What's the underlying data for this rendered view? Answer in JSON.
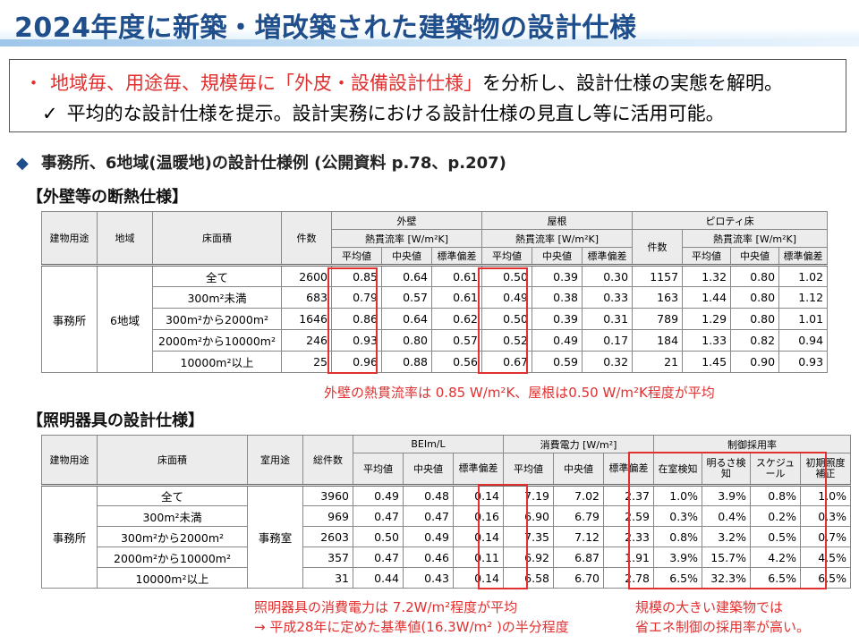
{
  "title": "2024年度に新築・増改築された建築物の設計仕様",
  "summary": {
    "bullet": "・",
    "line1_red": "地域毎、用途毎、規模毎に「外皮・設備設計仕様」",
    "line1_rest": "を分析し、設計仕様の実態を解明。",
    "check": "✓",
    "line2": "平均的な設計仕様を提示。設計実務における設計仕様の見直し等に活用可能。"
  },
  "section": {
    "marker": "◆",
    "text": "事務所、6地域(温暖地)の設計仕様例 (公開資料 p.78、p.207)"
  },
  "envelope": {
    "heading": "【外壁等の断熱仕様】",
    "h_use": "建物用途",
    "h_region": "地域",
    "h_area": "床面積",
    "h_count": "件数",
    "h_wall": "外壁",
    "h_roof": "屋根",
    "h_pilotis": "ピロティ床",
    "h_count2": "件数",
    "h_flux": "熱貫流率 [W/m²K]",
    "h_avg": "平均値",
    "h_med": "中央値",
    "h_sd": "標準偏差",
    "use": "事務所",
    "region": "6地域",
    "rows": [
      {
        "area": "全て",
        "count": "2600",
        "w_avg": "0.85",
        "w_med": "0.64",
        "w_sd": "0.61",
        "r_avg": "0.50",
        "r_med": "0.39",
        "r_sd": "0.30",
        "p_count": "1157",
        "p_avg": "1.32",
        "p_med": "0.80",
        "p_sd": "1.02"
      },
      {
        "area": "300m²未満",
        "count": "683",
        "w_avg": "0.79",
        "w_med": "0.57",
        "w_sd": "0.61",
        "r_avg": "0.49",
        "r_med": "0.38",
        "r_sd": "0.33",
        "p_count": "163",
        "p_avg": "1.44",
        "p_med": "0.80",
        "p_sd": "1.12"
      },
      {
        "area": "300m²から2000m²",
        "count": "1646",
        "w_avg": "0.86",
        "w_med": "0.64",
        "w_sd": "0.62",
        "r_avg": "0.50",
        "r_med": "0.39",
        "r_sd": "0.31",
        "p_count": "789",
        "p_avg": "1.29",
        "p_med": "0.80",
        "p_sd": "1.01"
      },
      {
        "area": "2000m²から10000m²",
        "count": "246",
        "w_avg": "0.93",
        "w_med": "0.80",
        "w_sd": "0.57",
        "r_avg": "0.52",
        "r_med": "0.49",
        "r_sd": "0.17",
        "p_count": "184",
        "p_avg": "1.33",
        "p_med": "0.82",
        "p_sd": "0.94"
      },
      {
        "area": "10000m²以上",
        "count": "25",
        "w_avg": "0.96",
        "w_med": "0.88",
        "w_sd": "0.56",
        "r_avg": "0.67",
        "r_med": "0.59",
        "r_sd": "0.32",
        "p_count": "21",
        "p_avg": "1.45",
        "p_med": "0.90",
        "p_sd": "0.93"
      }
    ],
    "note": "外壁の熱貫流率は 0.85 W/m²K、屋根は0.50 W/m²K程度が平均"
  },
  "lighting": {
    "heading": "【照明器具の設計仕様】",
    "h_use": "建物用途",
    "h_area": "床面積",
    "h_room": "室用途",
    "h_total": "総件数",
    "h_beim": "BEIm/L",
    "h_power": "消費電力 [W/m²]",
    "h_ctrl": "制御採用率",
    "h_avg": "平均値",
    "h_med": "中央値",
    "h_sd": "標準偏差",
    "h_c1": "在室検知",
    "h_c2": "明るさ検知",
    "h_c3": "スケジュール",
    "h_c4": "初期照度補正",
    "use": "事務所",
    "room": "事務室",
    "rows": [
      {
        "area": "全て",
        "total": "3960",
        "b_avg": "0.49",
        "b_med": "0.48",
        "b_sd": "0.14",
        "e_avg": "7.19",
        "e_med": "7.02",
        "e_sd": "2.37",
        "c1": "1.0%",
        "c2": "3.9%",
        "c3": "0.8%",
        "c4": "1.0%"
      },
      {
        "area": "300m²未満",
        "total": "969",
        "b_avg": "0.47",
        "b_med": "0.47",
        "b_sd": "0.16",
        "e_avg": "6.90",
        "e_med": "6.79",
        "e_sd": "2.59",
        "c1": "0.3%",
        "c2": "0.4%",
        "c3": "0.2%",
        "c4": "0.3%"
      },
      {
        "area": "300m²から2000m²",
        "total": "2603",
        "b_avg": "0.50",
        "b_med": "0.49",
        "b_sd": "0.14",
        "e_avg": "7.35",
        "e_med": "7.12",
        "e_sd": "2.33",
        "c1": "0.8%",
        "c2": "3.2%",
        "c3": "0.5%",
        "c4": "0.7%"
      },
      {
        "area": "2000m²から10000m²",
        "total": "357",
        "b_avg": "0.47",
        "b_med": "0.46",
        "b_sd": "0.11",
        "e_avg": "6.92",
        "e_med": "6.87",
        "e_sd": "1.91",
        "c1": "3.9%",
        "c2": "15.7%",
        "c3": "4.2%",
        "c4": "4.5%"
      },
      {
        "area": "10000m²以上",
        "total": "31",
        "b_avg": "0.44",
        "b_med": "0.43",
        "b_sd": "0.14",
        "e_avg": "6.58",
        "e_med": "6.70",
        "e_sd": "2.78",
        "c1": "6.5%",
        "c2": "32.3%",
        "c3": "6.5%",
        "c4": "6.5%"
      }
    ],
    "note1_a": "照明器具の消費電力は 7.2W/m²程度が平均",
    "note1_b": "→ 平成28年に定めた基準値(16.3W/m² )の半分程度",
    "note2_a": "規模の大きい建築物では",
    "note2_b": "省エネ制御の採用率が高い。"
  }
}
